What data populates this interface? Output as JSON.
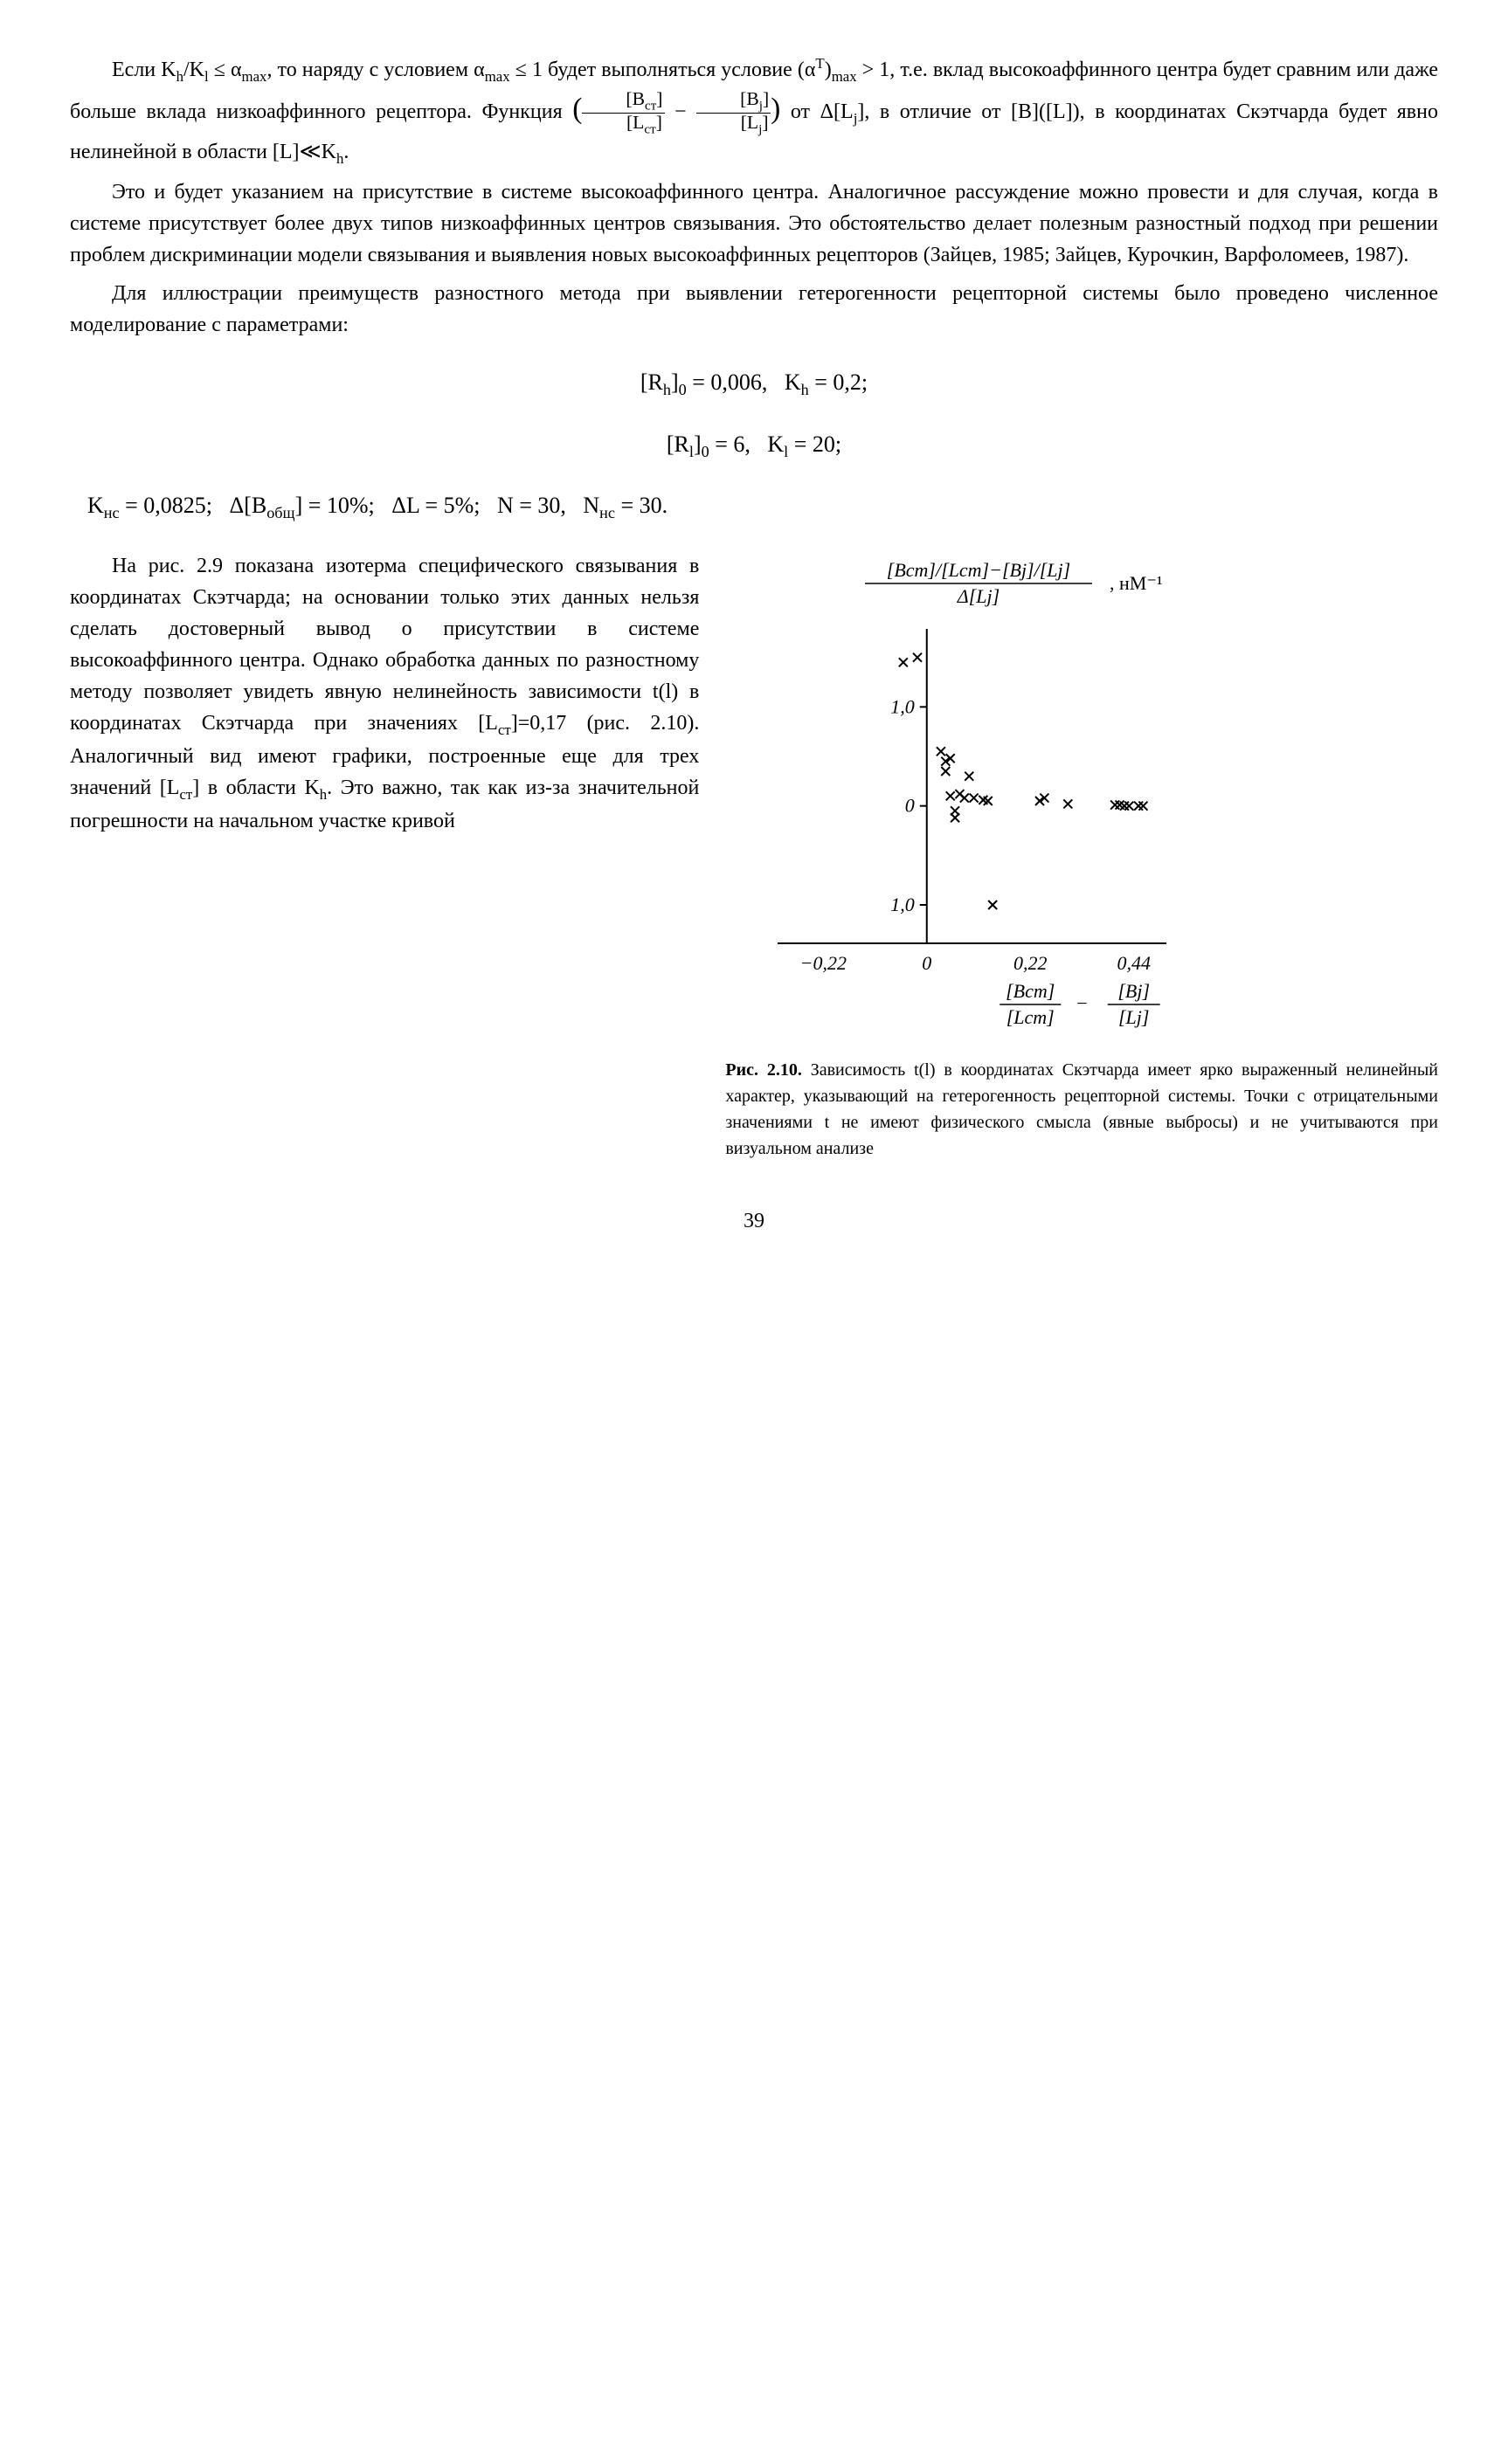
{
  "paragraphs": {
    "p1": "Если K_h/K_l ≤ α_max, то наряду с условием α_max ≤ 1 будет выполняться условие (α^T)_max > 1, т.е. вклад высокоаффинного центра будет сравним или даже больше вклада низкоаффинного рецептора. Функция ([B_ст]/[L_ст] − [B_j]/[L_j]) от Δ[L_j], в отличие от [B]([L]), в координатах Скэтчарда будет явно нелинейной в области [L]≪K_h.",
    "p2": "Это и будет указанием на присутствие в системе высокоаффинного центра. Аналогичное рассуждение можно провести и для случая, когда в системе присутствует более двух типов низкоаффинных центров связывания. Это обстоятельство делает полезным разностный подход при решении проблем дискриминации модели связывания и выявления новых высокоаффинных рецепторов (Зайцев, 1985; Зайцев, Курочкин, Варфоломеев, 1987).",
    "p3": "Для иллюстрации преимуществ разностного метода при выявлении гетерогенности рецепторной системы было проведено численное моделирование с параметрами:",
    "p4": "На рис. 2.9 показана изотерма специфического связывания в координатах Скэтчарда; на основании только этих данных нельзя сделать достоверный вывод о присутствии в системе высокоаффинного центра. Однако обработка данных по разностному методу позволяет увидеть явную нелинейность зависимости t(l) в координатах Скэтчарда при значениях [L_ст]=0,17 (рис. 2.10). Аналогичный вид имеют графики, построенные еще для трех значений [L_ст] в области K_h. Это важно, так как из-за значительной погрешности на начальном участке кривой"
  },
  "equations": {
    "eq1": "[R_h]_0 = 0,006,   K_h = 0,2;",
    "eq2": "[R_l]_0 = 6,   K_l = 20;",
    "eq3": "K_нс = 0,0825;   Δ[B_общ] = 10%;   ΔL = 5%;   N = 30,   N_нс = 30."
  },
  "figure": {
    "type": "scatter",
    "y_axis_label_top": "[B_ст]/[L_ст]−[B_j]/[L_j]",
    "y_axis_label_bottom": "Δ[L_j]",
    "y_unit": ", нМ⁻¹",
    "x_axis_label_left": "[B_ст]/[L_ст]",
    "x_axis_label_right": "[B_j]/[L_j]",
    "x_ticks": [
      "−0,22",
      "0",
      "0,22",
      "0,44"
    ],
    "y_ticks": [
      "1,0",
      "0",
      "1,0"
    ],
    "xlim": [
      -0.28,
      0.5
    ],
    "ylim": [
      -1.3,
      1.7
    ],
    "points": [
      {
        "x": -0.05,
        "y": 1.45
      },
      {
        "x": -0.02,
        "y": 1.5
      },
      {
        "x": 0.03,
        "y": 0.55
      },
      {
        "x": 0.04,
        "y": 0.45
      },
      {
        "x": 0.05,
        "y": 0.48
      },
      {
        "x": 0.04,
        "y": 0.35
      },
      {
        "x": 0.09,
        "y": 0.3
      },
      {
        "x": 0.05,
        "y": 0.1
      },
      {
        "x": 0.07,
        "y": 0.12
      },
      {
        "x": 0.08,
        "y": 0.08
      },
      {
        "x": 0.1,
        "y": 0.08
      },
      {
        "x": 0.12,
        "y": 0.06
      },
      {
        "x": 0.13,
        "y": 0.05
      },
      {
        "x": 0.06,
        "y": -0.05
      },
      {
        "x": 0.06,
        "y": -0.12
      },
      {
        "x": 0.24,
        "y": 0.05
      },
      {
        "x": 0.25,
        "y": 0.08
      },
      {
        "x": 0.3,
        "y": 0.02
      },
      {
        "x": 0.4,
        "y": 0.01
      },
      {
        "x": 0.41,
        "y": 0.01
      },
      {
        "x": 0.42,
        "y": 0.0
      },
      {
        "x": 0.43,
        "y": 0.0
      },
      {
        "x": 0.45,
        "y": 0.0
      },
      {
        "x": 0.46,
        "y": 0.0
      },
      {
        "x": 0.14,
        "y": -1.0
      }
    ],
    "marker": "x",
    "marker_color": "#000000",
    "marker_size": 10,
    "axis_color": "#000000",
    "axis_width": 2,
    "background_color": "#ffffff",
    "label_fontsize": 22,
    "tick_fontsize": 22
  },
  "caption": {
    "label": "Рис. 2.10.",
    "text": " Зависимость t(l) в координатах Скэтчарда имеет ярко выраженный нелинейный характер, указывающий на гетерогенность рецепторной системы. Точки с отрицательными значениями t не имеют физического смысла (явные выбросы) и не учитываются при визуальном анализе"
  },
  "page_number": "39"
}
